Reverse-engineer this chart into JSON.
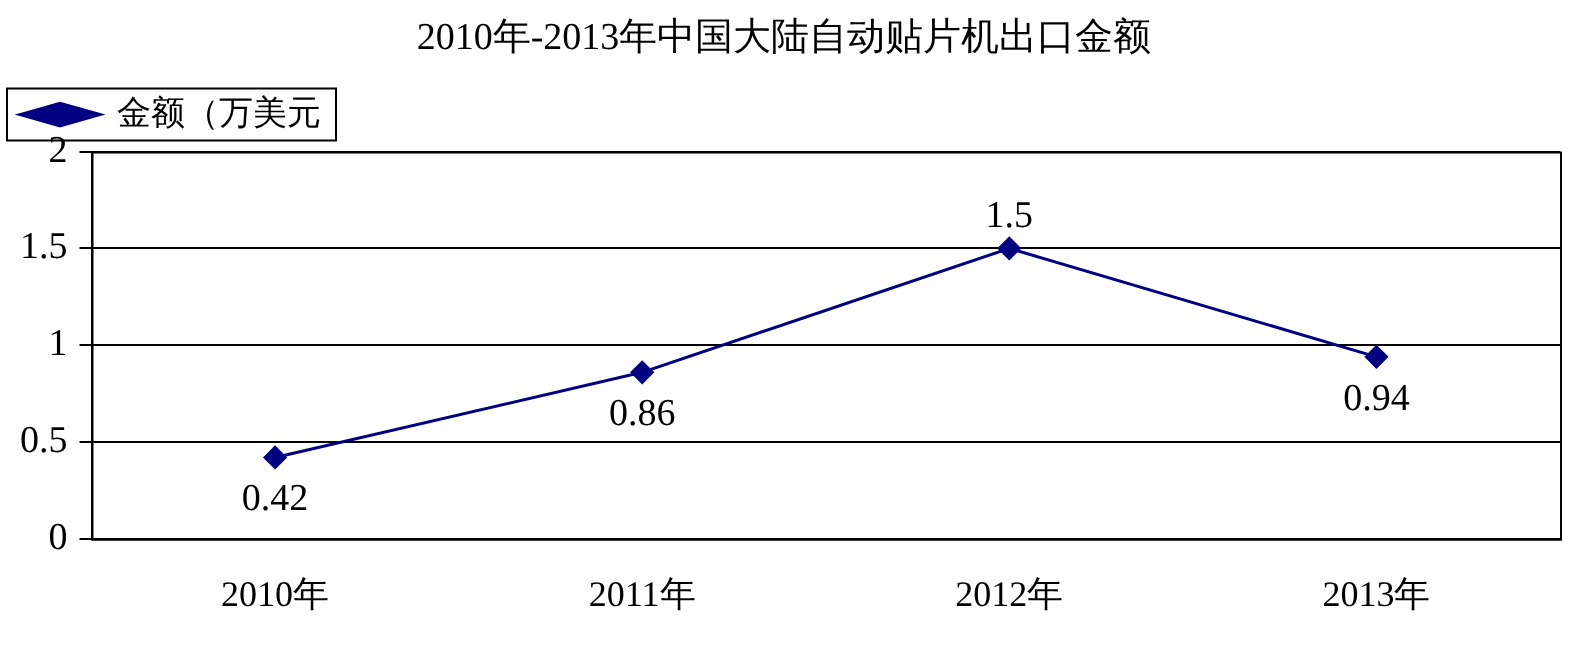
{
  "chart_data": {
    "type": "line",
    "title": "2010年-2013年中国大陆自动贴片机出口金额",
    "categories": [
      "2010年",
      "2011年",
      "2012年",
      "2013年"
    ],
    "series": [
      {
        "name": "金额（万美元",
        "color": "#000080",
        "values": [
          0.42,
          0.86,
          1.5,
          0.94
        ]
      }
    ],
    "ylim": [
      0,
      2
    ],
    "yticks": [
      0,
      0.5,
      1,
      1.5,
      2
    ],
    "grid": "y",
    "legend": "top left",
    "marker": "diamond",
    "line_style": "solid",
    "data_labels": true
  }
}
